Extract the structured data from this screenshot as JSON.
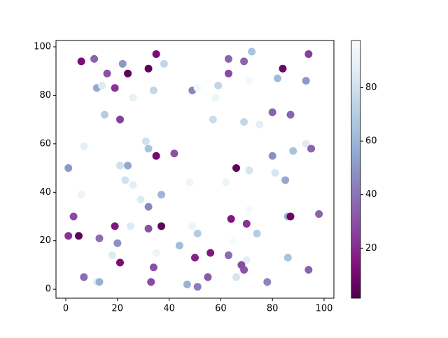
{
  "chart_data": {
    "type": "scatter",
    "x": [
      6,
      11,
      16,
      12,
      14,
      19,
      22,
      24,
      32,
      35,
      38,
      34,
      26,
      15,
      21,
      49,
      51,
      59,
      58,
      63,
      63,
      69,
      72,
      71,
      82,
      84,
      94,
      93,
      80,
      87,
      75,
      69,
      57,
      7,
      31,
      32,
      35,
      42,
      21,
      24,
      23,
      26,
      1,
      6,
      37,
      29,
      32,
      48,
      62,
      66,
      71,
      80,
      81,
      85,
      88,
      93,
      95,
      71,
      86,
      87,
      98,
      3,
      1,
      5,
      13,
      19,
      20,
      25,
      32,
      37,
      49,
      51,
      35,
      18,
      21,
      44,
      56,
      64,
      70,
      74,
      65,
      63,
      70,
      50,
      68,
      69,
      86,
      7,
      12,
      13,
      34,
      33,
      47,
      51,
      55,
      66,
      78,
      94
    ],
    "values": [
      94,
      95,
      89,
      83,
      84,
      83,
      93,
      89,
      91,
      97,
      93,
      82,
      79,
      72,
      70,
      82,
      83,
      84,
      79,
      95,
      89,
      94,
      98,
      86,
      87,
      91,
      97,
      86,
      73,
      72,
      68,
      69,
      70,
      59,
      61,
      58,
      55,
      56,
      51,
      51,
      45,
      43,
      50,
      39,
      39,
      37,
      34,
      44,
      44,
      50,
      49,
      55,
      48,
      45,
      57,
      60,
      58,
      33,
      30,
      30,
      31,
      30,
      22,
      22,
      21,
      26,
      19,
      26,
      25,
      26,
      26,
      23,
      15,
      14,
      11,
      18,
      15,
      29,
      27,
      23,
      20,
      14,
      12,
      13,
      10,
      8,
      13,
      5,
      3,
      3,
      9,
      3,
      2,
      1,
      5,
      5,
      3,
      8
    ],
    "color_values": [
      12,
      35,
      30,
      55,
      85,
      22,
      50,
      5,
      5,
      12,
      75,
      75,
      90,
      70,
      25,
      45,
      95,
      75,
      92,
      35,
      28,
      35,
      65,
      95,
      62,
      8,
      25,
      50,
      35,
      35,
      88,
      75,
      78,
      88,
      80,
      65,
      10,
      30,
      80,
      55,
      80,
      88,
      50,
      92,
      60,
      85,
      45,
      92,
      92,
      5,
      82,
      48,
      82,
      55,
      65,
      85,
      35,
      96,
      58,
      8,
      35,
      28,
      22,
      5,
      38,
      15,
      48,
      85,
      30,
      5,
      92,
      70,
      92,
      85,
      12,
      62,
      15,
      15,
      22,
      70,
      97,
      38,
      88,
      18,
      28,
      30,
      65,
      38,
      88,
      58,
      30,
      28,
      58,
      42,
      32,
      82,
      45,
      35
    ],
    "colormap": [
      "#4d004b",
      "#810f7c",
      "#88419d",
      "#8c6bb1",
      "#8c96c6",
      "#9ebcda",
      "#bfd3e6",
      "#e0ecf4",
      "#f7fcfd"
    ],
    "xlim": [
      -3.8,
      103.8
    ],
    "ylim": [
      -3.7,
      102.6
    ],
    "xticks": [
      0,
      20,
      40,
      60,
      80,
      100
    ],
    "yticks": [
      0,
      20,
      40,
      60,
      80,
      100
    ],
    "clim": [
      1.3,
      97.6
    ],
    "cticks": [
      20,
      40,
      60,
      80
    ]
  }
}
